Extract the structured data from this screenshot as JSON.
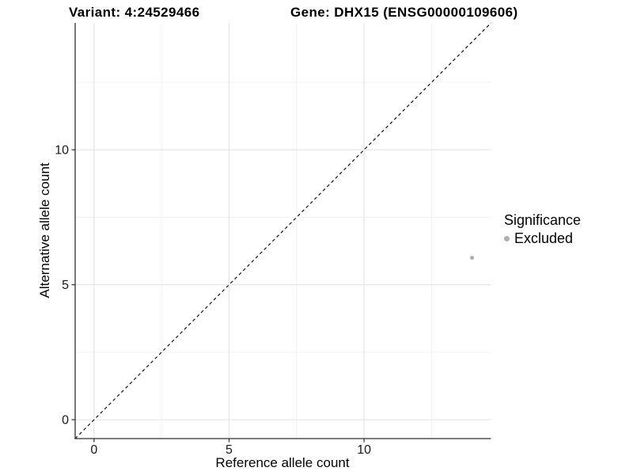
{
  "figure": {
    "title_variant": "Variant: 4:24529466",
    "title_gene": "Gene: DHX15 (ENSG00000109606)"
  },
  "legend": {
    "title": "Significance",
    "items": [
      {
        "label": "Excluded",
        "color": "#b0b0b0"
      }
    ]
  },
  "chart_data": {
    "type": "scatter",
    "title": "Variant: 4:24529466   Gene: DHX15 (ENSG00000109606)",
    "xlabel": "Reference allele count",
    "ylabel": "Alternative allele count",
    "xlim": [
      -0.7,
      14.7
    ],
    "ylim": [
      -0.7,
      14.7
    ],
    "x_ticks": [
      0,
      5,
      10
    ],
    "y_ticks": [
      0,
      5,
      10
    ],
    "x_minor_ticks": [
      2.5,
      7.5,
      12.5
    ],
    "y_minor_ticks": [
      2.5,
      7.5,
      12.5
    ],
    "grid": true,
    "legend_position": "right-outside",
    "series": [
      {
        "name": "Excluded",
        "color": "#b0b0b0",
        "points": [
          {
            "x": 14,
            "y": 6
          }
        ]
      }
    ],
    "reference_line": {
      "type": "identity y=x",
      "style": "dashed",
      "color": "#000000"
    },
    "colors": {
      "grid_major": "#e3e3e3",
      "grid_minor": "#f1f1f1",
      "axis": "#2f2f2f",
      "tick_text": "#1a1a1a"
    }
  }
}
